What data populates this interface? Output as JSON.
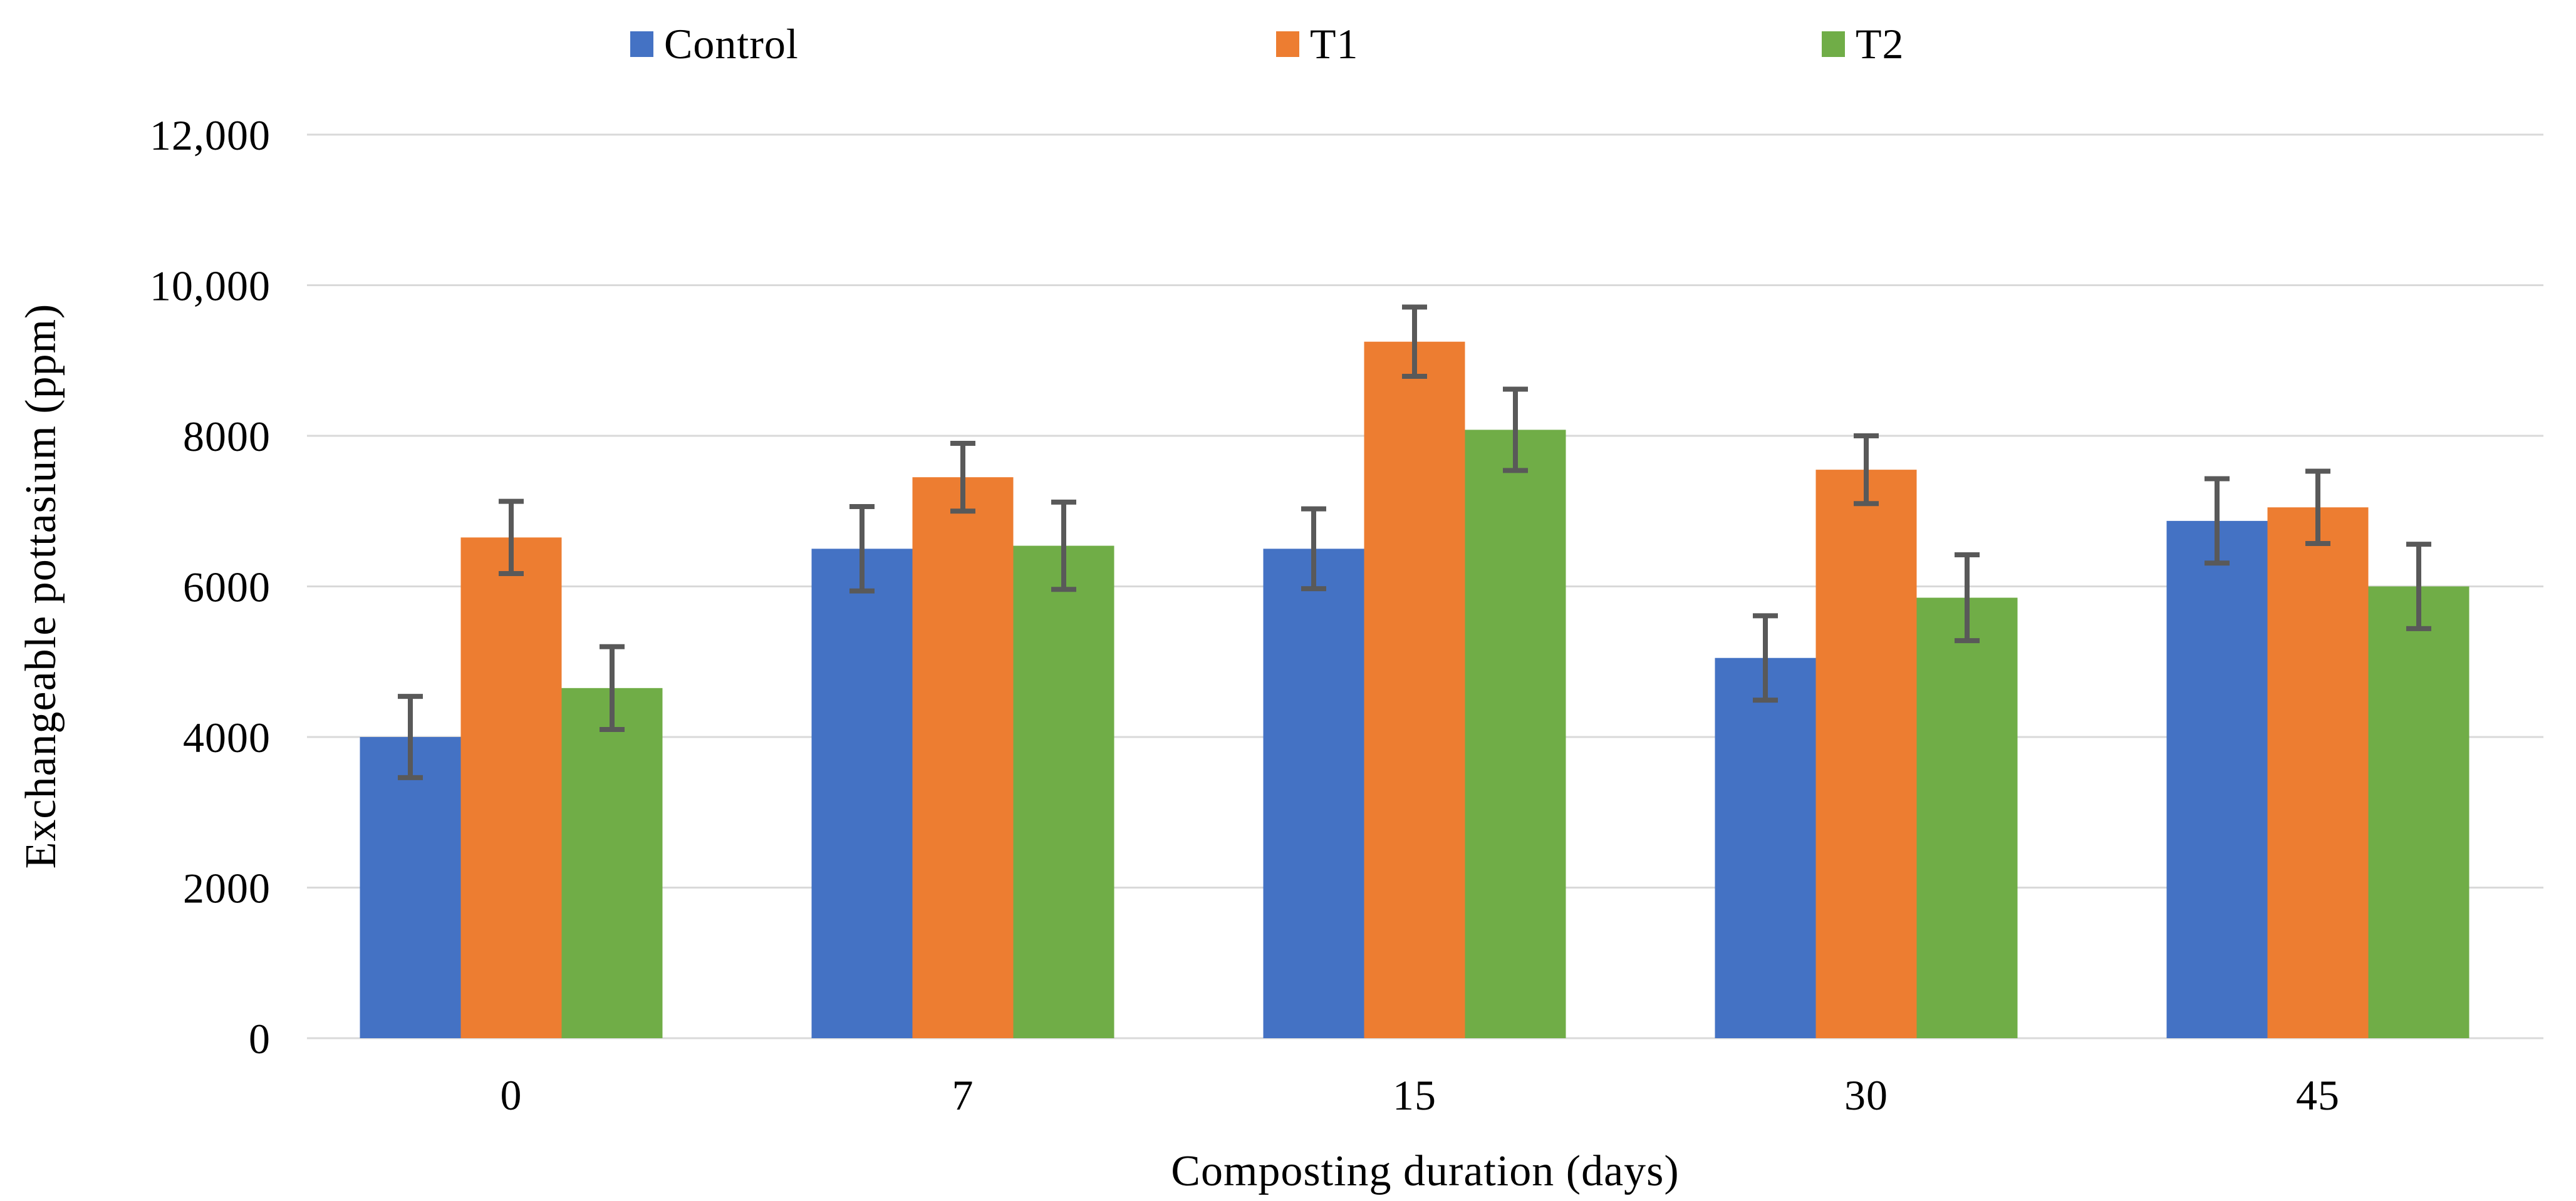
{
  "figure": {
    "background": "#ffffff",
    "text_color": "#000000"
  },
  "chart_data": {
    "type": "bar",
    "subtype": "grouped-vertical-with-error-bars",
    "title": "",
    "xlabel": "Composting duration (days)",
    "ylabel": "Exchangeable pottasium (ppm)",
    "categories": [
      "0",
      "7",
      "15",
      "30",
      "45"
    ],
    "series": [
      {
        "name": "Control",
        "color": "#4472C4",
        "values": [
          4000,
          6500,
          6500,
          5050,
          6870
        ],
        "errors": [
          540,
          560,
          530,
          560,
          560
        ]
      },
      {
        "name": "T1",
        "color": "#ED7D31",
        "values": [
          6650,
          7450,
          9250,
          7550,
          7050
        ],
        "errors": [
          480,
          450,
          460,
          450,
          480
        ]
      },
      {
        "name": "T2",
        "color": "#70AD47",
        "values": [
          4650,
          6540,
          8080,
          5850,
          6000
        ],
        "errors": [
          550,
          580,
          540,
          570,
          560
        ]
      }
    ],
    "ylim": [
      0,
      12000
    ],
    "y_tick_interval": 2000,
    "y_tick_labels": [
      "0",
      "2000",
      "4000",
      "6000",
      "8000",
      "10,000",
      "12,000"
    ],
    "grid": "horizontal",
    "gridline_color": "#D9D9D9",
    "error_bar_color": "#595959",
    "legend_position": "top"
  }
}
